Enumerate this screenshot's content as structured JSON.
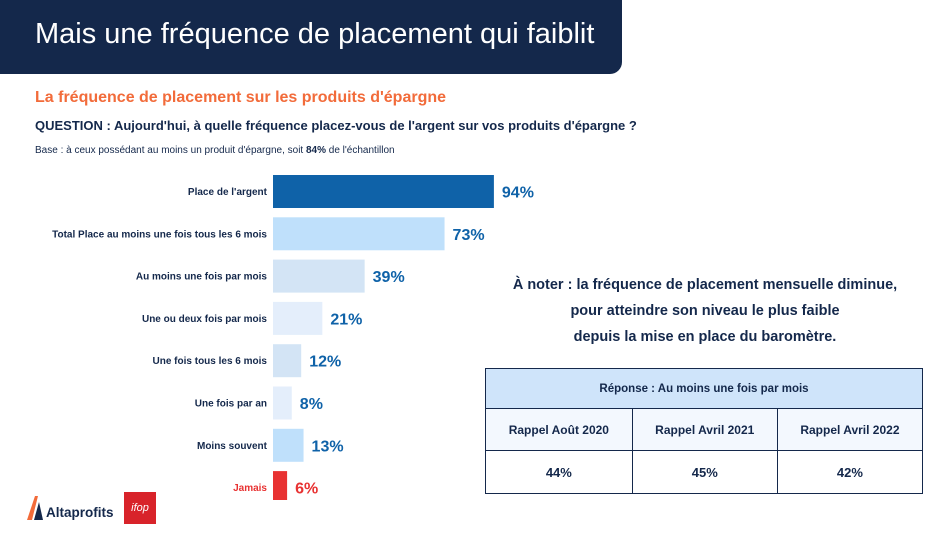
{
  "header": {
    "title": "Mais une fréquence de placement qui faiblit"
  },
  "subtitle": "La fréquence de placement sur les produits d'épargne",
  "question": "QUESTION : Aujourd'hui, à quelle fréquence placez-vous de l'argent sur vos produits d'épargne ?",
  "base": {
    "prefix": "Base : à ceux possédant au moins un produit d'épargne, soit ",
    "pct": "84%",
    "suffix": " de l'échantillon"
  },
  "chart_data": {
    "type": "bar",
    "orientation": "horizontal",
    "categories": [
      "Place de l'argent",
      "Total Place au moins une fois tous les 6 mois",
      "Au moins une fois par mois",
      "Une ou deux fois par mois",
      "Une fois tous les 6 mois",
      "Une fois par an",
      "Moins souvent",
      "Jamais"
    ],
    "values": [
      94,
      73,
      39,
      21,
      12,
      8,
      13,
      6
    ],
    "labels": [
      "94%",
      "73%",
      "39%",
      "21%",
      "12%",
      "8%",
      "13%",
      "6%"
    ],
    "colors": [
      "#0f62a8",
      "#bfe0fb",
      "#d3e4f5",
      "#e4eefb",
      "#d3e4f5",
      "#e4eefb",
      "#bfe0fb",
      "#e83232"
    ],
    "label_colors": [
      "#14284b",
      "#14284b",
      "#14284b",
      "#14284b",
      "#14284b",
      "#14284b",
      "#14284b",
      "#e83232"
    ],
    "value_label_color": "#0f62a8",
    "value_label_colors": [
      "#0f62a8",
      "#0f62a8",
      "#0f62a8",
      "#0f62a8",
      "#0f62a8",
      "#0f62a8",
      "#0f62a8",
      "#e83232"
    ],
    "xlim": [
      0,
      100
    ],
    "grid": false,
    "legend": "none"
  },
  "note": {
    "line1": "À noter : la fréquence de placement mensuelle diminue,",
    "line2": "pour atteindre son niveau le plus faible",
    "line3": "depuis la mise en place du baromètre."
  },
  "recall": {
    "header": "Réponse : Au moins une fois par mois",
    "columns": [
      "Rappel Août 2020",
      "Rappel Avril 2021",
      "Rappel Avril 2022"
    ],
    "values": [
      "44%",
      "45%",
      "42%"
    ]
  },
  "logos": {
    "altaprofits": "Altaprofits",
    "ifop": "ifop"
  },
  "colors": {
    "header_bg": "#14284b",
    "accent": "#f26b3a",
    "primary": "#0f62a8",
    "alert": "#e83232"
  }
}
